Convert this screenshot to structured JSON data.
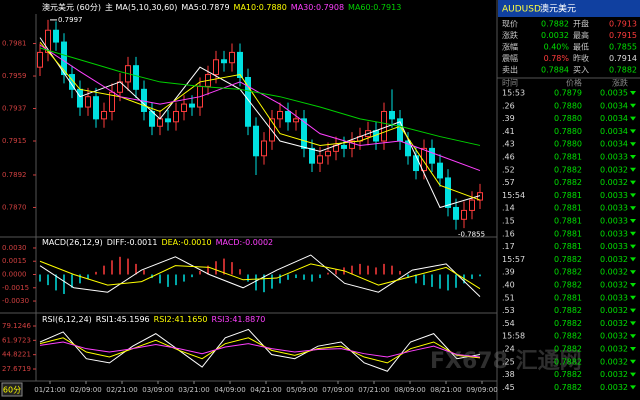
{
  "header": {
    "title": "澳元美元 (60分)",
    "indicator": "主 MA(5,10,30,60)"
  },
  "time_axis": {
    "period": "60分",
    "dates": [
      "01/21:00",
      "02/09:00",
      "02/21:00",
      "03/09:00",
      "03/21:00",
      "04/09:00",
      "04/21:00",
      "05/09:00",
      "07/09:00",
      "07/21:00",
      "08/09:00",
      "08/21:00",
      "09/09:00"
    ]
  },
  "chart_data": [
    {
      "type": "candlestick",
      "up_color": "#ff3c3c",
      "down_color": "#00e0e0",
      "open": [
        0.7965,
        0.7975,
        0.799,
        0.7982,
        0.796,
        0.795,
        0.7938,
        0.7945,
        0.793,
        0.7935,
        0.7948,
        0.7955,
        0.7966,
        0.795,
        0.7935,
        0.7925,
        0.793,
        0.7928,
        0.7935,
        0.794,
        0.7938,
        0.7952,
        0.796,
        0.797,
        0.7968,
        0.7975,
        0.7958,
        0.7925,
        0.7905,
        0.7915,
        0.793,
        0.7935,
        0.7928,
        0.793,
        0.791,
        0.79,
        0.7905,
        0.7908,
        0.7912,
        0.791,
        0.7915,
        0.7918,
        0.7922,
        0.7915,
        0.7935,
        0.793,
        0.7915,
        0.7905,
        0.7895,
        0.791,
        0.79,
        0.789,
        0.787,
        0.7862,
        0.7868,
        0.7875
      ],
      "high": [
        0.7981,
        0.7997,
        0.7996,
        0.7988,
        0.7966,
        0.7956,
        0.7951,
        0.7951,
        0.7941,
        0.7954,
        0.7961,
        0.7972,
        0.7972,
        0.7956,
        0.7941,
        0.7936,
        0.7936,
        0.7941,
        0.7946,
        0.7946,
        0.7958,
        0.7966,
        0.7976,
        0.7976,
        0.7981,
        0.7981,
        0.7964,
        0.7931,
        0.7921,
        0.7936,
        0.7941,
        0.7941,
        0.7936,
        0.7936,
        0.7916,
        0.7911,
        0.7914,
        0.7918,
        0.7918,
        0.7921,
        0.7924,
        0.7928,
        0.7928,
        0.7941,
        0.795,
        0.7936,
        0.7921,
        0.7911,
        0.7916,
        0.7916,
        0.7906,
        0.7896,
        0.7876,
        0.7874,
        0.7881,
        0.7886
      ],
      "low": [
        0.7959,
        0.7969,
        0.7976,
        0.7954,
        0.7944,
        0.7932,
        0.7932,
        0.7924,
        0.7924,
        0.7929,
        0.7942,
        0.7949,
        0.7944,
        0.7929,
        0.7919,
        0.7919,
        0.7922,
        0.7922,
        0.7929,
        0.7932,
        0.7932,
        0.7946,
        0.7954,
        0.7962,
        0.7962,
        0.7952,
        0.7919,
        0.7892,
        0.7899,
        0.7909,
        0.7924,
        0.7922,
        0.7922,
        0.7904,
        0.7894,
        0.7894,
        0.7899,
        0.7902,
        0.7904,
        0.7904,
        0.7909,
        0.7912,
        0.7909,
        0.7909,
        0.7924,
        0.7909,
        0.7899,
        0.7889,
        0.7889,
        0.7894,
        0.7884,
        0.7864,
        0.7855,
        0.7856,
        0.7862,
        0.7869
      ],
      "close": [
        0.7975,
        0.799,
        0.7982,
        0.796,
        0.795,
        0.7938,
        0.7945,
        0.793,
        0.7935,
        0.7948,
        0.7955,
        0.7966,
        0.795,
        0.7935,
        0.7925,
        0.793,
        0.7928,
        0.7935,
        0.794,
        0.7938,
        0.7952,
        0.796,
        0.797,
        0.7968,
        0.7975,
        0.7958,
        0.7925,
        0.7905,
        0.7915,
        0.793,
        0.7935,
        0.7928,
        0.793,
        0.791,
        0.79,
        0.7905,
        0.7908,
        0.7912,
        0.791,
        0.7915,
        0.7918,
        0.7922,
        0.7915,
        0.7935,
        0.793,
        0.7915,
        0.7905,
        0.7895,
        0.791,
        0.79,
        0.789,
        0.787,
        0.7862,
        0.7868,
        0.7875,
        0.788
      ],
      "series": [
        {
          "label": "MA5:0.7879",
          "color": "#ffffff",
          "values": [
            0.7985,
            0.7945,
            0.7955,
            0.793,
            0.7965,
            0.795,
            0.7915,
            0.7908,
            0.7918,
            0.7928,
            0.787,
            0.7878
          ]
        },
        {
          "label": "MA10:0.7880",
          "color": "#ffff00",
          "values": [
            0.7982,
            0.795,
            0.7945,
            0.7935,
            0.7955,
            0.796,
            0.792,
            0.7912,
            0.7915,
            0.7925,
            0.7885,
            0.7875
          ]
        },
        {
          "label": "MA30:0.7908",
          "color": "#ff40ff",
          "values": [
            0.798,
            0.7962,
            0.7945,
            0.794,
            0.7945,
            0.7955,
            0.794,
            0.792,
            0.7912,
            0.7915,
            0.7905,
            0.7895
          ]
        },
        {
          "label": "MA60:0.7913",
          "color": "#00d000",
          "values": [
            0.7978,
            0.797,
            0.7962,
            0.7955,
            0.7952,
            0.795,
            0.7945,
            0.7938,
            0.793,
            0.7925,
            0.7918,
            0.7912
          ]
        }
      ],
      "max_label": "0.7997",
      "min_label": "-0.7855",
      "ylim": [
        0.785,
        0.8001
      ],
      "yticks": [
        0.7981,
        0.7959,
        0.7937,
        0.7915,
        0.7892,
        {
          "value": 0.787,
          "label": "0.7870"
        }
      ]
    },
    {
      "type": "macd",
      "title": "MACD(26,12,9)",
      "histogram_label": "MACD:-0.0002",
      "histogram_label_color": "#ff40ff",
      "up_color": "#ff3c3c",
      "down_color": "#00e0e0",
      "histogram": [
        -0.0008,
        -0.0012,
        -0.0018,
        -0.0022,
        -0.0015,
        -0.001,
        -0.0005,
        0.0003,
        0.001,
        0.0016,
        0.002,
        0.0018,
        0.0012,
        0.0005,
        -0.0004,
        -0.001,
        -0.0014,
        -0.0012,
        -0.0008,
        -0.0003,
        0.0004,
        0.001,
        0.0015,
        0.0018,
        0.0014,
        0.0006,
        -0.0008,
        -0.0018,
        -0.002,
        -0.0016,
        -0.001,
        -0.0006,
        -0.0004,
        -0.0006,
        -0.0008,
        -0.0004,
        0.0002,
        0.0006,
        0.0008,
        0.001,
        0.0012,
        0.001,
        0.0008,
        0.0012,
        0.001,
        0.0004,
        -0.0004,
        -0.001,
        -0.0012,
        -0.0014,
        -0.0016,
        -0.0018,
        -0.0015,
        -0.001,
        -0.0005,
        -0.0002
      ],
      "series": [
        {
          "label": "DIFF:-0.0011",
          "color": "#ffffff",
          "values": [
            0.001,
            -0.0015,
            -0.002,
            0.0005,
            0.002,
            0.0,
            -0.0015,
            0.0005,
            0.0022,
            -0.001,
            -0.002,
            0.0005,
            0.0012,
            -0.0025
          ]
        },
        {
          "label": "DEA:-0.0010",
          "color": "#ffff00",
          "values": [
            0.0015,
            0.0,
            -0.0012,
            -0.0008,
            0.001,
            0.0008,
            -0.0006,
            -0.0004,
            0.0012,
            0.0004,
            -0.0012,
            -0.0002,
            0.0008,
            -0.0016
          ]
        }
      ],
      "ylim": [
        -0.0039,
        0.0039
      ],
      "yticks": [
        {
          "value": 0.003,
          "label": "0.0030"
        },
        {
          "value": 0.0015,
          "label": "0.0015"
        },
        {
          "value": 0,
          "label": "0.0000"
        },
        {
          "value": -0.0015,
          "label": "-0.0015"
        },
        {
          "value": -0.003,
          "label": "-0.0030"
        }
      ]
    },
    {
      "type": "rsi",
      "title": "RSI(6,12,24)",
      "series": [
        {
          "label": "RSI1:45.1596",
          "color": "#ffffff",
          "values": [
            60,
            72,
            40,
            35,
            55,
            70,
            50,
            30,
            65,
            75,
            45,
            40,
            55,
            60,
            35,
            25,
            60,
            70,
            40,
            45
          ]
        },
        {
          "label": "RSI2:41.1650",
          "color": "#ffff00",
          "values": [
            58,
            65,
            48,
            42,
            52,
            62,
            50,
            40,
            58,
            65,
            50,
            44,
            52,
            55,
            42,
            35,
            52,
            60,
            44,
            41
          ]
        },
        {
          "label": "RSI3:41.8870",
          "color": "#ff40ff",
          "values": [
            56,
            60,
            52,
            48,
            52,
            57,
            52,
            46,
            54,
            58,
            52,
            48,
            51,
            52,
            46,
            42,
            49,
            55,
            45,
            42
          ]
        }
      ],
      "ylim": [
        14.5,
        94.7
      ],
      "yticks": [
        79.1246,
        61.9723,
        44.8221,
        27.6719
      ]
    }
  ],
  "quote": {
    "symbol": "AUDUSD",
    "name": "澳元美元",
    "rows": [
      [
        "现价",
        "0.7882",
        "开盘",
        "0.7913"
      ],
      [
        "涨跌",
        "0.0032",
        "最高",
        "0.7915"
      ],
      [
        "涨幅",
        "0.40%",
        "最低",
        "0.7855"
      ],
      [
        "震幅",
        "0.78%",
        "昨收",
        "0.7914"
      ],
      [
        "卖出",
        "0.7884",
        "买入",
        "0.7882"
      ]
    ]
  },
  "ticks": {
    "headers": [
      "时间",
      "价格",
      "涨跌"
    ],
    "rows": [
      [
        "15:53",
        "0.7879",
        "0.0035"
      ],
      [
        ".26",
        "0.7880",
        "0.0034"
      ],
      [
        ".39",
        "0.7880",
        "0.0034"
      ],
      [
        ".41",
        "0.7880",
        "0.0034"
      ],
      [
        ".43",
        "0.7880",
        "0.0034"
      ],
      [
        ".46",
        "0.7881",
        "0.0033"
      ],
      [
        ".52",
        "0.7882",
        "0.0032"
      ],
      [
        ".57",
        "0.7882",
        "0.0032"
      ],
      [
        "15:54",
        "0.7881",
        "0.0033"
      ],
      [
        ".14",
        "0.7881",
        "0.0033"
      ],
      [
        ".15",
        "0.7881",
        "0.0033"
      ],
      [
        ".16",
        "0.7881",
        "0.0033"
      ],
      [
        ".17",
        "0.7881",
        "0.0033"
      ],
      [
        "15:57",
        "0.7882",
        "0.0032"
      ],
      [
        ".39",
        "0.7882",
        "0.0032"
      ],
      [
        ".40",
        "0.7882",
        "0.0032"
      ],
      [
        ".51",
        "0.7881",
        "0.0033"
      ],
      [
        ".53",
        "0.7882",
        "0.0032"
      ],
      [
        ".54",
        "0.7882",
        "0.0032"
      ],
      [
        "15:58",
        "0.7882",
        "0.0032"
      ],
      [
        ".24",
        "0.7882",
        "0.0032"
      ],
      [
        ".25",
        "0.7882",
        "0.0032"
      ],
      [
        ".38",
        "0.7882",
        "0.0032"
      ],
      [
        ".45",
        "0.7882",
        "0.0032"
      ]
    ]
  },
  "watermark": "FX678 汇通网"
}
